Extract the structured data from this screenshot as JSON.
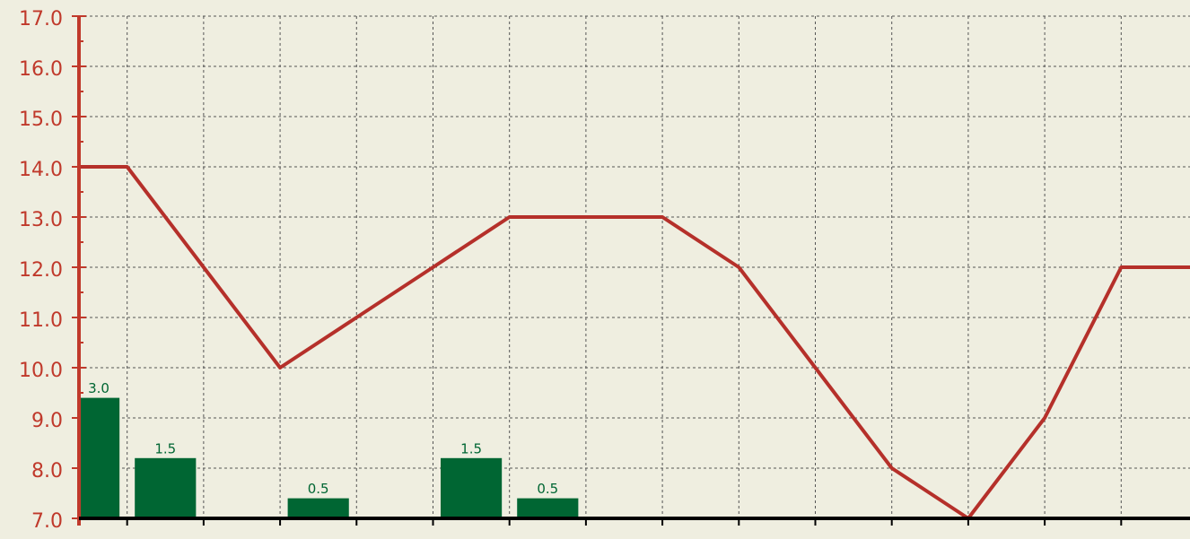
{
  "chart_data": {
    "type": "line+bar",
    "xlim": [
      0.37,
      14.9
    ],
    "xticks": [
      1,
      2,
      3,
      4,
      5,
      6,
      7,
      8,
      9,
      10,
      11,
      12,
      13,
      14
    ],
    "ylim": [
      7,
      17
    ],
    "yticks": [
      {
        "value": 7,
        "label": "7.0"
      },
      {
        "value": 8,
        "label": "8.0"
      },
      {
        "value": 9,
        "label": "9.0"
      },
      {
        "value": 10,
        "label": "10.0"
      },
      {
        "value": 11,
        "label": "11.0"
      },
      {
        "value": 12,
        "label": "12.0"
      },
      {
        "value": 13,
        "label": "13.0"
      },
      {
        "value": 14,
        "label": "14.0"
      },
      {
        "value": 15,
        "label": "15.0"
      },
      {
        "value": 16,
        "label": "16.0"
      },
      {
        "value": 17,
        "label": "17.0"
      }
    ],
    "y2lim": [
      0,
      12.5
    ],
    "grid": true,
    "series": [
      {
        "type": "line",
        "color": "#b5302a",
        "x": [
          0.37,
          1,
          2,
          3,
          4,
          5,
          6,
          7,
          8,
          9,
          10,
          11,
          12,
          13,
          14,
          14.9
        ],
        "values": [
          14,
          14,
          12,
          10,
          11,
          12,
          13,
          13,
          13,
          12,
          10,
          8,
          7,
          9,
          12,
          12
        ]
      },
      {
        "type": "bar",
        "axis": "y2",
        "color": "#006633",
        "bar_width": 0.8,
        "x": [
          0.5,
          1.5,
          3.5,
          5.5,
          6.5
        ],
        "values": [
          3.0,
          1.5,
          0.5,
          1.5,
          0.5
        ],
        "value_labels": [
          "3.0",
          "1.5",
          "0.5",
          "1.5",
          "0.5"
        ]
      }
    ]
  }
}
